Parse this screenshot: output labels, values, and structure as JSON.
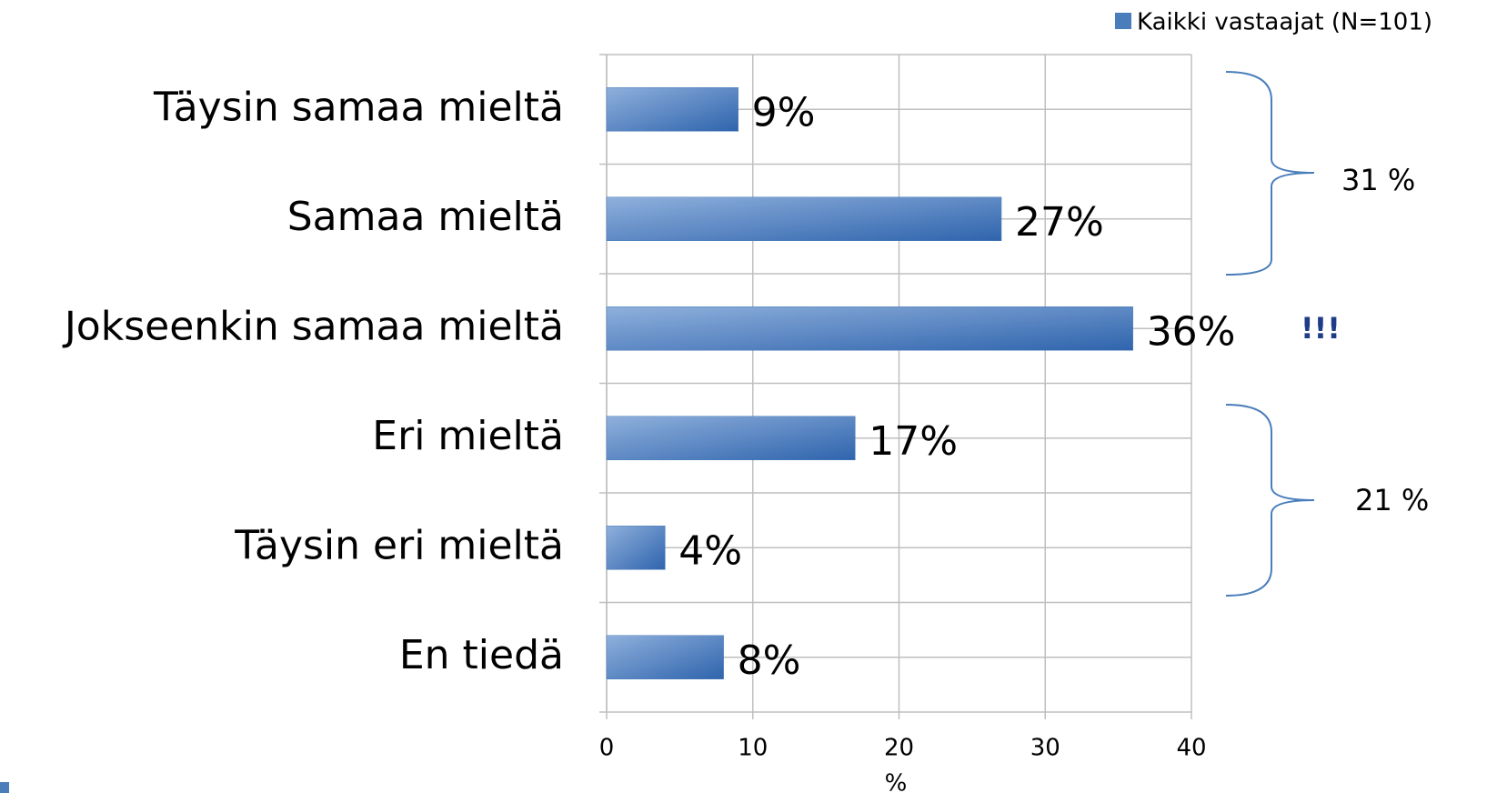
{
  "chart_data": {
    "type": "hbar",
    "categories": [
      "Täysin samaa mieltä",
      "Samaa mieltä",
      "Jokseenkin samaa mieltä",
      "Eri mieltä",
      "Täysin eri mieltä",
      "En tiedä"
    ],
    "series": [
      {
        "name": "Kaikki vastaajat (N=101)",
        "color": "#4a7ebb",
        "values": [
          9,
          27,
          36,
          17,
          4,
          8
        ],
        "value_labels": [
          "9%",
          "27%",
          "36%",
          "17%",
          "4%",
          "8%"
        ]
      }
    ],
    "xlim": [
      0,
      40
    ],
    "xticks": [
      0,
      10,
      20,
      30,
      40
    ],
    "xlabel": "%",
    "grid": true,
    "legend": "top-right",
    "annotations": [
      "31 %",
      "21 %",
      "!!!"
    ]
  }
}
